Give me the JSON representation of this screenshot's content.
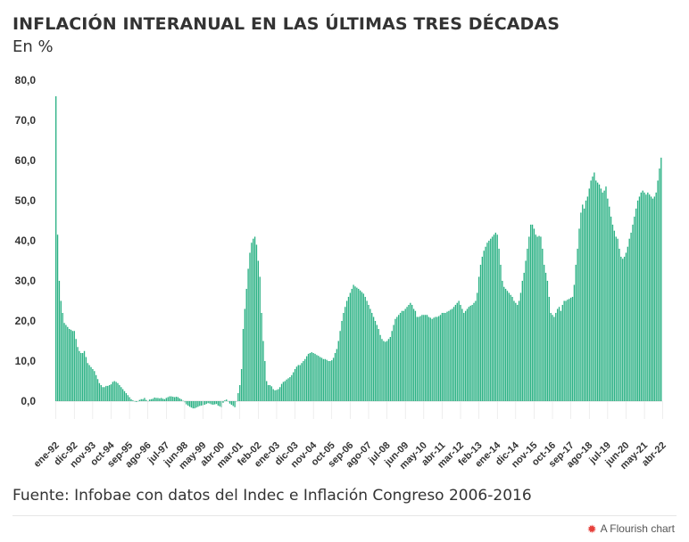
{
  "header": {
    "title": "INFLACIÓN INTERANUAL EN LAS ÚLTIMAS TRES DÉCADAS",
    "subtitle": "En %"
  },
  "footer": {
    "source": "Fuente: Infobae con datos del Indec e Inflación Congreso 2006-2016",
    "credit": "A Flourish chart",
    "credit_icon": "flourish-logo-icon"
  },
  "colors": {
    "bar": "#2bb184",
    "axis_text": "#333333",
    "zero_line": "#bbbbbb"
  },
  "chart_data": {
    "type": "bar",
    "title": "INFLACIÓN INTERANUAL EN LAS ÚLTIMAS TRES DÉCADAS",
    "subtitle": "En %",
    "x_start": "1992-01",
    "frequency": "monthly",
    "ylim": [
      -2,
      80
    ],
    "yticks": [
      "0,0",
      "10,0",
      "20,0",
      "30,0",
      "40,0",
      "50,0",
      "60,0",
      "70,0",
      "80,0"
    ],
    "xtick_labels": [
      "ene-92",
      "dic-92",
      "nov-93",
      "oct-94",
      "sep-95",
      "ago-96",
      "jul-97",
      "jun-98",
      "may-99",
      "abr-00",
      "mar-01",
      "feb-02",
      "ene-03",
      "dic-03",
      "nov-04",
      "oct-05",
      "sep-06",
      "ago-07",
      "jul-08",
      "jun-09",
      "may-10",
      "abr-11",
      "mar-12",
      "feb-13",
      "ene-14",
      "dic-14",
      "nov-15",
      "oct-16",
      "sep-17",
      "ago-18",
      "jul-19",
      "jun-20",
      "may-21",
      "abr-22"
    ],
    "grid": false,
    "legend": "none",
    "values": [
      76.0,
      41.5,
      30.0,
      25.0,
      22.0,
      19.5,
      19.0,
      18.5,
      18.0,
      17.8,
      17.5,
      17.5,
      15.5,
      13.5,
      12.5,
      12.0,
      12.0,
      12.5,
      11.0,
      9.5,
      9.0,
      8.5,
      8.0,
      7.5,
      6.5,
      5.5,
      4.5,
      4.0,
      3.5,
      3.5,
      3.8,
      3.8,
      4.0,
      4.2,
      4.8,
      5.0,
      4.8,
      4.5,
      4.0,
      3.5,
      3.0,
      2.5,
      2.0,
      1.5,
      1.0,
      0.5,
      0.2,
      0.0,
      -0.2,
      0.0,
      0.3,
      0.5,
      0.5,
      0.8,
      0.3,
      0.0,
      0.4,
      0.5,
      0.6,
      0.9,
      0.8,
      0.8,
      0.7,
      0.8,
      0.6,
      0.5,
      0.8,
      1.0,
      1.2,
      1.2,
      1.1,
      1.0,
      1.1,
      1.0,
      0.7,
      0.5,
      0.1,
      -0.3,
      -0.8,
      -1.1,
      -1.4,
      -1.6,
      -1.8,
      -1.8,
      -1.6,
      -1.4,
      -1.2,
      -1.1,
      -1.0,
      -0.9,
      -0.7,
      -0.5,
      -0.6,
      -0.8,
      -0.9,
      -0.8,
      -0.7,
      -1.1,
      -1.3,
      -1.5,
      -0.4,
      0.2,
      0.4,
      0.0,
      -0.6,
      -0.9,
      -1.2,
      -1.5,
      0.0,
      2.0,
      4.0,
      8.0,
      18.0,
      23.0,
      28.0,
      33.0,
      37.0,
      39.5,
      40.5,
      41.0,
      39.0,
      35.0,
      31.0,
      22.0,
      15.0,
      10.0,
      5.0,
      4.0,
      4.0,
      3.7,
      3.0,
      2.7,
      2.8,
      3.0,
      3.5,
      4.3,
      4.8,
      5.0,
      5.4,
      5.7,
      6.0,
      6.5,
      7.2,
      8.0,
      8.6,
      9.0,
      9.0,
      9.5,
      10.0,
      10.5,
      11.2,
      11.8,
      12.0,
      12.2,
      12.0,
      11.8,
      11.5,
      11.3,
      11.0,
      10.8,
      10.5,
      10.5,
      10.3,
      10.0,
      10.0,
      10.2,
      10.8,
      12.0,
      13.0,
      15.0,
      17.5,
      20.0,
      22.0,
      23.5,
      25.0,
      26.0,
      27.0,
      28.0,
      29.0,
      28.6,
      28.3,
      28.0,
      27.6,
      27.2,
      26.8,
      26.0,
      25.0,
      24.0,
      23.0,
      22.0,
      21.0,
      20.0,
      19.0,
      18.0,
      16.5,
      15.5,
      15.0,
      14.8,
      15.0,
      15.5,
      16.0,
      17.5,
      19.0,
      20.5,
      21.0,
      21.5,
      22.0,
      22.5,
      22.5,
      23.0,
      23.5,
      24.0,
      24.5,
      24.0,
      23.0,
      22.5,
      21.0,
      21.0,
      21.2,
      21.5,
      21.5,
      21.5,
      21.5,
      21.0,
      20.8,
      20.5,
      20.8,
      21.0,
      21.0,
      21.2,
      21.5,
      22.0,
      22.0,
      22.0,
      22.3,
      22.5,
      22.8,
      23.0,
      23.5,
      24.0,
      24.5,
      25.0,
      24.0,
      23.0,
      22.0,
      22.5,
      23.0,
      23.5,
      23.8,
      24.0,
      24.5,
      25.0,
      27.0,
      31.0,
      34.0,
      36.0,
      37.5,
      38.5,
      39.5,
      40.0,
      40.5,
      41.0,
      41.5,
      42.0,
      41.5,
      38.0,
      34.0,
      30.0,
      28.5,
      28.0,
      27.5,
      27.0,
      26.5,
      26.0,
      25.0,
      24.5,
      24.0,
      25.0,
      27.0,
      30.0,
      32.0,
      35.0,
      38.0,
      41.0,
      44.0,
      44.0,
      43.0,
      41.5,
      41.0,
      41.2,
      41.0,
      38.0,
      34.0,
      32.0,
      30.0,
      26.0,
      22.0,
      21.5,
      21.0,
      22.0,
      23.0,
      23.5,
      22.5,
      24.0,
      25.0,
      25.0,
      25.3,
      25.5,
      25.8,
      26.0,
      29.0,
      34.0,
      38.0,
      43.0,
      47.0,
      49.0,
      48.0,
      50.0,
      51.0,
      53.0,
      55.0,
      56.0,
      57.0,
      55.0,
      54.5,
      54.0,
      53.0,
      52.0,
      52.5,
      53.5,
      50.5,
      48.5,
      46.0,
      44.0,
      42.5,
      41.0,
      40.5,
      38.0,
      36.0,
      35.5,
      36.0,
      37.0,
      38.5,
      40.5,
      42.0,
      44.0,
      46.0,
      48.0,
      50.0,
      51.0,
      52.0,
      52.5,
      52.0,
      51.5,
      52.0,
      51.5,
      51.0,
      50.5,
      51.0,
      52.0,
      55.0,
      58.0,
      60.7
    ]
  }
}
